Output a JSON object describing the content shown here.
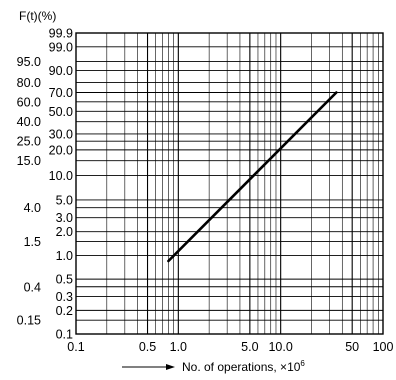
{
  "chart_data": {
    "type": "line",
    "title": "",
    "ylabel": "F(t)(%)",
    "xlabel": "No. of operations, ×10",
    "xlabel_exponent": "6",
    "x_scale": "log",
    "y_scale": "weibull",
    "xlim": [
      0.1,
      100
    ],
    "ylim": [
      0.1,
      99.9
    ],
    "grid": true,
    "x_ticks": [
      {
        "value": 0.1,
        "label": "0.1"
      },
      {
        "value": 0.5,
        "label": "0.5"
      },
      {
        "value": 1,
        "label": "1.0"
      },
      {
        "value": 5,
        "label": "5.0"
      },
      {
        "value": 10,
        "label": "10.0"
      },
      {
        "value": 50,
        "label": "50"
      },
      {
        "value": 100,
        "label": "100"
      }
    ],
    "y_ticks_inner": [
      {
        "value": 99.9,
        "label": "99.9"
      },
      {
        "value": 99.0,
        "label": "99.0"
      },
      {
        "value": 90.0,
        "label": "90.0"
      },
      {
        "value": 70.0,
        "label": "70.0"
      },
      {
        "value": 50.0,
        "label": "50.0"
      },
      {
        "value": 30.0,
        "label": "30.0"
      },
      {
        "value": 20.0,
        "label": "20.0"
      },
      {
        "value": 10.0,
        "label": "10.0"
      },
      {
        "value": 5.0,
        "label": "5.0"
      },
      {
        "value": 3.0,
        "label": "3.0"
      },
      {
        "value": 2.0,
        "label": "2.0"
      },
      {
        "value": 1.0,
        "label": "1.0"
      },
      {
        "value": 0.5,
        "label": "0.5"
      },
      {
        "value": 0.3,
        "label": "0.3"
      },
      {
        "value": 0.2,
        "label": "0.2"
      },
      {
        "value": 0.1,
        "label": "0.1"
      }
    ],
    "y_ticks_outer": [
      {
        "value": 95.0,
        "label": "95.0"
      },
      {
        "value": 80.0,
        "label": "80.0"
      },
      {
        "value": 60.0,
        "label": "60.0"
      },
      {
        "value": 40.0,
        "label": "40.0"
      },
      {
        "value": 25.0,
        "label": "25.0"
      },
      {
        "value": 15.0,
        "label": "15.0"
      },
      {
        "value": 4.0,
        "label": "4.0"
      },
      {
        "value": 1.5,
        "label": "1.5"
      },
      {
        "value": 0.4,
        "label": "0.4"
      },
      {
        "value": 0.15,
        "label": "0.15"
      }
    ],
    "series": [
      {
        "x": [
          0.8,
          35
        ],
        "y": [
          0.85,
          70
        ]
      }
    ]
  }
}
